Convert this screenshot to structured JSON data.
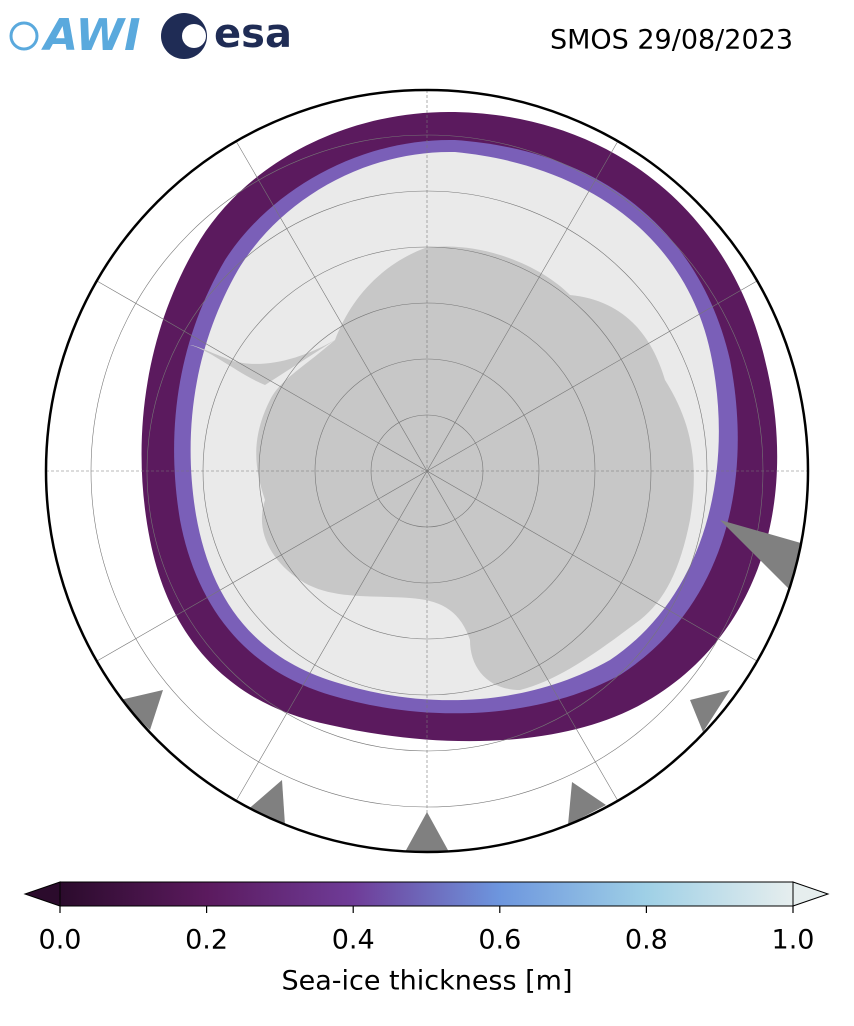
{
  "header": {
    "logos": [
      "AWI",
      "esa"
    ],
    "title": "SMOS 29/08/2023"
  },
  "colorbar": {
    "label": "Sea-ice thickness [m]",
    "lim": [
      0,
      1
    ],
    "ticks": [
      {
        "value": 0,
        "label": "0.0"
      },
      0.2,
      0.4,
      0.6,
      0.8,
      {
        "value": 1,
        "label": "1.0"
      }
    ],
    "colors": [
      "#2b0b2c",
      "#5b1a5e",
      "#6f3c98",
      "#6d96de",
      "#9fd0e6",
      "#e6eeee"
    ]
  }
}
